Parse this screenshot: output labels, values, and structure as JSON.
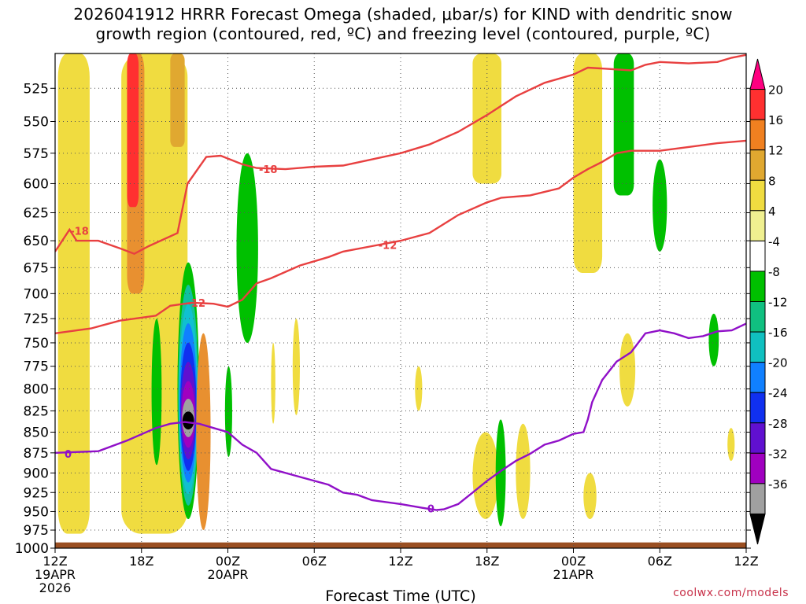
{
  "title": {
    "line1": "2026041912 HRRR Forecast Omega (shaded, μbar/s) for KIND with dendritic snow",
    "line2": "growth region (contoured, red, ºC) and freezing level (contoured, purple, ºC)"
  },
  "credit": "coolwx.com/models",
  "chart_data": {
    "type": "time-height",
    "title": "2026041912 HRRR Forecast Omega (shaded, μbar/s) for KIND with dendritic snow growth region (contoured, red, ºC) and freezing level (contoured, purple, ºC)",
    "xlabel": "Forecast Time (UTC)",
    "ylabel": "",
    "xlim_hours_from_12Z19APR": [
      0,
      48
    ],
    "ylim_hPa": [
      1000,
      500
    ],
    "ylog": true,
    "grid": true,
    "x_ticks": [
      {
        "hour": 0,
        "label": "12Z",
        "sub1": "19APR",
        "sub2": "2026"
      },
      {
        "hour": 6,
        "label": "18Z"
      },
      {
        "hour": 12,
        "label": "00Z",
        "sub1": "20APR"
      },
      {
        "hour": 18,
        "label": "06Z"
      },
      {
        "hour": 24,
        "label": "12Z"
      },
      {
        "hour": 30,
        "label": "18Z"
      },
      {
        "hour": 36,
        "label": "00Z",
        "sub1": "21APR"
      },
      {
        "hour": 42,
        "label": "06Z"
      },
      {
        "hour": 48,
        "label": "12Z"
      }
    ],
    "y_ticks": [
      525,
      550,
      575,
      600,
      625,
      650,
      675,
      700,
      725,
      750,
      775,
      800,
      825,
      850,
      875,
      900,
      925,
      950,
      975,
      1000
    ],
    "colorbar": {
      "label_values": [
        20,
        16,
        12,
        8,
        4,
        -4,
        -8,
        -12,
        -16,
        -20,
        -24,
        -28,
        -32,
        -36
      ],
      "colors": [
        "#ff0080",
        "#ff3030",
        "#f08020",
        "#e0a830",
        "#f0dc40",
        "#f0f090",
        "#ffffff",
        "#00c000",
        "#10c080",
        "#10c0c0",
        "#1080ff",
        "#1030f0",
        "#6010d0",
        "#a000c0",
        "#a0a0a0",
        "#000000"
      ]
    },
    "contours": {
      "dgz_red": [
        {
          "label": "-18",
          "points": [
            [
              0,
              660
            ],
            [
              1,
              640
            ],
            [
              1.5,
              650
            ],
            [
              3,
              650
            ],
            [
              4.5,
              657
            ],
            [
              5.5,
              662
            ],
            [
              6.5,
              655
            ],
            [
              8.5,
              643
            ],
            [
              9.2,
              600
            ],
            [
              10.5,
              578
            ],
            [
              11.5,
              577
            ],
            [
              13,
              584
            ],
            [
              14,
              587
            ],
            [
              16,
              588
            ],
            [
              18,
              586
            ],
            [
              20,
              585
            ],
            [
              22,
              580
            ],
            [
              24,
              575
            ],
            [
              26,
              568
            ],
            [
              28,
              558
            ],
            [
              30,
              545
            ],
            [
              32,
              531
            ],
            [
              34,
              521
            ],
            [
              36,
              515
            ],
            [
              37,
              510
            ],
            [
              38.5,
              511
            ],
            [
              40,
              512
            ],
            [
              41,
              508
            ],
            [
              42,
              506
            ],
            [
              44,
              507
            ],
            [
              46,
              506
            ],
            [
              47,
              503
            ],
            [
              48,
              501
            ]
          ]
        },
        {
          "label": "-12",
          "points": [
            [
              0,
              740
            ],
            [
              2.5,
              735
            ],
            [
              4.5,
              727
            ],
            [
              5.5,
              725
            ],
            [
              7,
              722
            ],
            [
              8,
              712
            ],
            [
              9.5,
              709
            ],
            [
              11,
              710
            ],
            [
              12,
              713
            ],
            [
              13,
              706
            ],
            [
              14,
              690
            ],
            [
              15,
              685
            ],
            [
              17,
              673
            ],
            [
              19,
              665
            ],
            [
              20,
              660
            ],
            [
              22,
              655
            ],
            [
              24,
              650
            ],
            [
              26,
              643
            ],
            [
              28,
              627
            ],
            [
              30,
              616
            ],
            [
              31,
              612
            ],
            [
              33,
              610
            ],
            [
              35,
              604
            ],
            [
              36,
              595
            ],
            [
              37,
              588
            ],
            [
              38,
              582
            ],
            [
              39,
              575
            ],
            [
              40,
              573
            ],
            [
              42,
              573
            ],
            [
              44,
              570
            ],
            [
              46,
              567
            ],
            [
              48,
              565
            ]
          ]
        }
      ],
      "freezing_level_purple": {
        "label": "0",
        "points": [
          [
            0,
            875
          ],
          [
            3,
            873
          ],
          [
            5,
            860
          ],
          [
            7,
            845
          ],
          [
            8,
            840
          ],
          [
            9,
            838
          ],
          [
            10,
            840
          ],
          [
            11,
            845
          ],
          [
            12,
            850
          ],
          [
            13,
            865
          ],
          [
            14,
            875
          ],
          [
            15,
            895
          ],
          [
            17,
            905
          ],
          [
            18,
            910
          ],
          [
            19,
            915
          ],
          [
            20,
            925
          ],
          [
            21,
            928
          ],
          [
            22,
            935
          ],
          [
            24,
            940
          ],
          [
            25.5,
            945
          ],
          [
            26.5,
            948
          ],
          [
            27,
            947
          ],
          [
            28,
            940
          ],
          [
            29,
            925
          ],
          [
            30,
            910
          ],
          [
            31,
            897
          ],
          [
            32,
            885
          ],
          [
            33,
            876
          ],
          [
            34,
            865
          ],
          [
            35,
            860
          ],
          [
            36,
            852
          ],
          [
            36.7,
            850
          ],
          [
            37,
            835
          ],
          [
            37.3,
            815
          ],
          [
            38,
            790
          ],
          [
            39,
            770
          ],
          [
            40,
            760
          ],
          [
            41,
            740
          ],
          [
            42,
            737
          ],
          [
            43,
            740
          ],
          [
            44,
            745
          ],
          [
            45,
            743
          ],
          [
            46,
            738
          ],
          [
            47,
            737
          ],
          [
            48,
            730
          ]
        ]
      }
    },
    "shaded_regions": [
      {
        "hours": [
          0.2,
          2.4
        ],
        "hPa": [
          500,
          980
        ],
        "class": "4 to 8"
      },
      {
        "hours": [
          4.6,
          9.2
        ],
        "hPa": [
          500,
          980
        ],
        "class": "4 to 8"
      },
      {
        "hours": [
          5.0,
          6.2
        ],
        "hPa": [
          500,
          700
        ],
        "class": "8 to 16"
      },
      {
        "hours": [
          5.0,
          5.8
        ],
        "hPa": [
          500,
          620
        ],
        "class": "16 to 20"
      },
      {
        "hours": [
          8.0,
          9.0
        ],
        "hPa": [
          500,
          570
        ],
        "class": "8 to 12"
      },
      {
        "hours": [
          6.7,
          7.4
        ],
        "hPa": [
          725,
          890
        ],
        "class": "-4 to -8"
      },
      {
        "hours": [
          8.5,
          10.0
        ],
        "hPa": [
          670,
          960
        ],
        "class": "-4 to -36"
      },
      {
        "hours": [
          9.8,
          10.8
        ],
        "hPa": [
          740,
          975
        ],
        "class": "8 to 16"
      },
      {
        "hours": [
          11.8,
          12.3
        ],
        "hPa": [
          775,
          880
        ],
        "class": "-4 to -8"
      },
      {
        "hours": [
          12.6,
          14.1
        ],
        "hPa": [
          575,
          750
        ],
        "class": "-4 to -8"
      },
      {
        "hours": [
          15.0,
          15.3
        ],
        "hPa": [
          750,
          840
        ],
        "class": "4 to 8"
      },
      {
        "hours": [
          16.5,
          17.0
        ],
        "hPa": [
          725,
          830
        ],
        "class": "4 to 8"
      },
      {
        "hours": [
          25.0,
          25.5
        ],
        "hPa": [
          775,
          825
        ],
        "class": "4 to 8"
      },
      {
        "hours": [
          29.0,
          30.8
        ],
        "hPa": [
          850,
          960
        ],
        "class": "4 to 8"
      },
      {
        "hours": [
          30.6,
          31.3
        ],
        "hPa": [
          835,
          970
        ],
        "class": "-4 to -12"
      },
      {
        "hours": [
          32.0,
          33.0
        ],
        "hPa": [
          840,
          960
        ],
        "class": "4 to 8"
      },
      {
        "hours": [
          29.0,
          31.0
        ],
        "hPa": [
          500,
          600
        ],
        "class": "4 to 8"
      },
      {
        "hours": [
          36.0,
          38.0
        ],
        "hPa": [
          500,
          680
        ],
        "class": "4 to 8"
      },
      {
        "hours": [
          38.8,
          40.2
        ],
        "hPa": [
          500,
          610
        ],
        "class": "-4 to -8"
      },
      {
        "hours": [
          41.5,
          42.5
        ],
        "hPa": [
          580,
          660
        ],
        "class": "-4 to -8"
      },
      {
        "hours": [
          39.2,
          40.3
        ],
        "hPa": [
          740,
          820
        ],
        "class": "4 to 8"
      },
      {
        "hours": [
          36.7,
          37.6
        ],
        "hPa": [
          900,
          960
        ],
        "class": "4 to 8"
      },
      {
        "hours": [
          45.4,
          46.1
        ],
        "hPa": [
          720,
          775
        ],
        "class": "-4 to -8"
      },
      {
        "hours": [
          46.7,
          47.2
        ],
        "hPa": [
          845,
          885
        ],
        "class": "4 to 8"
      }
    ],
    "ground": {
      "surface_hPa": 992,
      "color": "#9a4f22"
    }
  }
}
